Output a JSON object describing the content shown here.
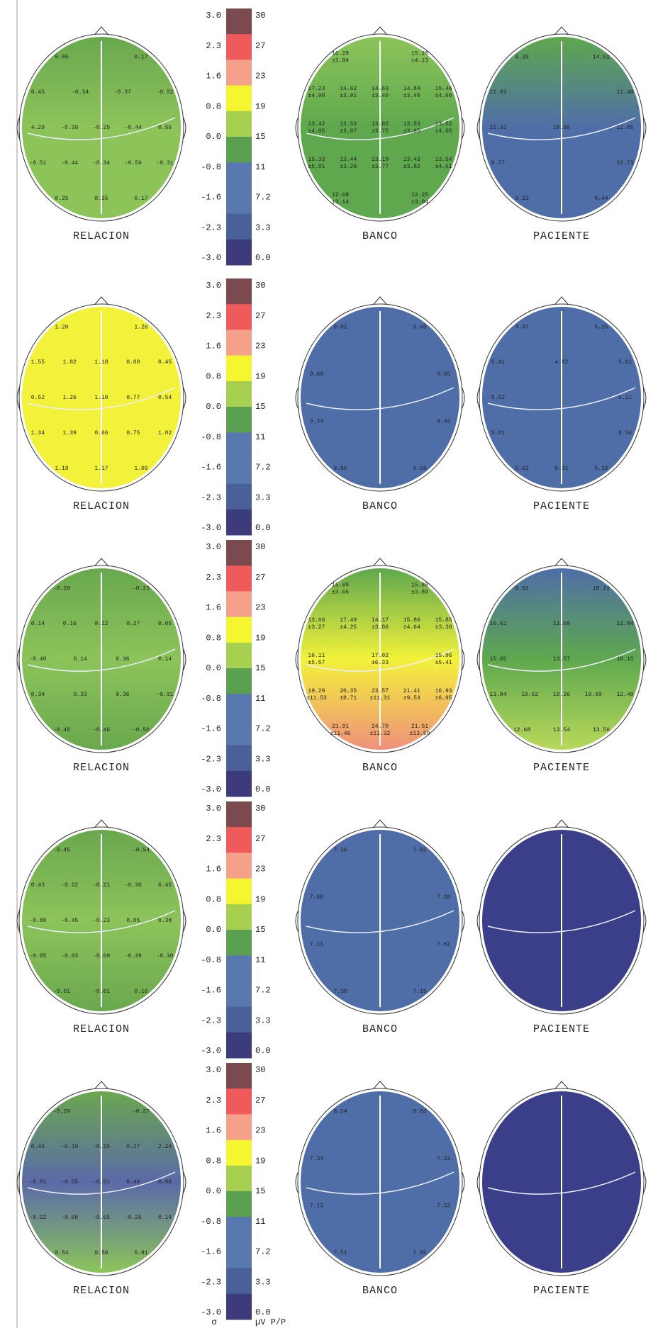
{
  "scale": {
    "sigma_ticks": [
      "3.0",
      "2.3",
      "1.6",
      "0.8",
      "0.0",
      "-0.8",
      "-1.6",
      "-2.3",
      "-3.0"
    ],
    "uv_ticks": [
      "30",
      "27",
      "23",
      "19",
      "15",
      "11",
      "7.2",
      "3.3",
      "0.0"
    ],
    "sigma_label": "σ",
    "uv_label": "µV P/P"
  },
  "rows": [
    {
      "maps": [
        {
          "label": "RELACION",
          "colors": [
            "#6aa84f",
            "#8cc45a",
            "#8cc45a"
          ],
          "lines": [
            [
              "0.05",
              "0.17"
            ],
            [
              "0.45",
              "-0.34",
              "-0.37",
              "-0.52"
            ],
            [
              "4.29",
              "-0.39",
              "-0.25",
              "-0.44",
              "0.56"
            ],
            [
              "-0.51",
              "-0.44",
              "-0.34",
              "-0.56",
              "-0.31"
            ],
            [
              "0.25",
              "0.25",
              "0.17"
            ]
          ]
        },
        {
          "label": "BANCO",
          "colors": [
            "#8cc45a",
            "#5fa84e",
            "#5fa84e"
          ],
          "lines": [
            [
              [
                "16.29",
                "±3.84"
              ],
              [
                "15.20",
                "±4.13"
              ]
            ],
            [
              [
                "17.23",
                "±4.90"
              ],
              [
                "14.62",
                "±3.91"
              ],
              [
                "14.63",
                "±3.40"
              ],
              [
                "14.84",
                "±3.40"
              ],
              [
                "15.46",
                "±4.60"
              ]
            ],
            [
              [
                "13.42",
                "±4.05"
              ],
              [
                "13.53",
                "±3.87"
              ],
              [
                "13.02",
                "±3.75"
              ],
              [
                "13.53",
                "±3.65"
              ],
              [
                "13.52",
                "±4.05"
              ]
            ],
            [
              [
                "15.33",
                "±5.01"
              ],
              [
                "13.44",
                "±3.29"
              ],
              [
                "13.19",
                "±3.77"
              ],
              [
                "13.43",
                "±3.82"
              ],
              [
                "13.54",
                "±4.61"
              ]
            ],
            [
              [
                "12.68",
                "±3.14"
              ],
              [
                "12.25",
                "±3.04"
              ]
            ]
          ]
        },
        {
          "label": "PACIENTE",
          "colors": [
            "#5fa84e",
            "#4f6ea8",
            "#4f6ea8"
          ],
          "lines": [
            [
              "9.29",
              "14.51"
            ],
            [
              "11.03",
              "11.40"
            ],
            [
              "21.31",
              "10.88",
              "11.05"
            ],
            [
              "9.77",
              "10.73"
            ],
            [
              "9.22",
              "9.44"
            ]
          ]
        }
      ]
    },
    {
      "maps": [
        {
          "label": "RELACION",
          "colors": [
            "#f2f23a",
            "#f2f23a",
            "#f2f23a"
          ],
          "lines": [
            [
              "1.20",
              "1.26"
            ],
            [
              "1.55",
              "1.02",
              "1.18",
              "0.88",
              "0.45"
            ],
            [
              "0.52",
              "1.26",
              "1.10",
              "0.77",
              "0.54"
            ],
            [
              "1.34",
              "1.39",
              "0.66",
              "0.75",
              "1.02"
            ],
            [
              "1.19",
              "1.17",
              "1.09"
            ]
          ]
        },
        {
          "label": "BANCO",
          "colors": [
            "#4f6ea8",
            "#4f6ea8",
            "#4f6ea8"
          ],
          "lines": [
            [
              "9.82",
              "9.65"
            ],
            [
              "9.68",
              "9.65"
            ],
            [
              "9.34",
              "9.42"
            ],
            [
              "9.66",
              "9.66"
            ]
          ]
        },
        {
          "label": "PACIENTE",
          "colors": [
            "#4f6ea8",
            "#4f6ea8",
            "#4f6ea8"
          ],
          "lines": [
            [
              "4.47",
              "5.25"
            ],
            [
              "5.41",
              "4.82",
              "5.61"
            ],
            [
              "5.02",
              "5.21"
            ],
            [
              "5.81",
              "6.34"
            ],
            [
              "5.62",
              "5.31",
              "5.38"
            ]
          ]
        }
      ]
    },
    {
      "maps": [
        {
          "label": "RELACION",
          "colors": [
            "#6aa84f",
            "#8cc45a",
            "#6aa84f"
          ],
          "lines": [
            [
              "-0.20",
              "-0.23"
            ],
            [
              "0.14",
              "0.16",
              "0.22",
              "0.27",
              "0.05"
            ],
            [
              "-0.40",
              "0.14",
              "0.36",
              "0.14"
            ],
            [
              "0.34",
              "0.33",
              "0.36",
              "-0.01"
            ],
            [
              "-0.45",
              "-0.46",
              "-0.50"
            ]
          ]
        },
        {
          "label": "BANCO",
          "colors": [
            "#5fa84e",
            "#f2f23a",
            "#f0907a"
          ],
          "lines": [
            [
              [
                "15.09",
                "±3.66"
              ],
              [
                "15.88",
                "±3.89"
              ]
            ],
            [
              [
                "13.66",
                "±3.27"
              ],
              [
                "17.49",
                "±4.25"
              ],
              [
                "14.17",
                "±3.86"
              ],
              [
                "15.86",
                "±4.64"
              ],
              [
                "15.85",
                "±3.30"
              ]
            ],
            [
              [
                "16.11",
                "±5.57"
              ],
              [
                "17.02",
                "±6.33"
              ],
              [
                "15.96",
                "±5.41"
              ]
            ],
            [
              [
                "19.29",
                "±11.53"
              ],
              [
                "20.35",
                "±8.71"
              ],
              [
                "23.57",
                "±11.31"
              ],
              [
                "21.41",
                "±9.53"
              ],
              [
                "16.93",
                "±6.95"
              ]
            ],
            [
              [
                "21.91",
                "±11.46"
              ],
              [
                "24.70",
                "±11.32"
              ],
              [
                "21.51",
                "±13.59"
              ]
            ]
          ]
        },
        {
          "label": "PACIENTE",
          "colors": [
            "#4f6ea8",
            "#5fa84e",
            "#b8d85a"
          ],
          "lines": [
            [
              "9.82",
              "10.22"
            ],
            [
              "10.61",
              "11.60",
              "11.04"
            ],
            [
              "15.65",
              "13.57",
              "10.15"
            ],
            [
              "13.84",
              "19.62",
              "19.26",
              "19.60",
              "12.40"
            ],
            [
              "12.68",
              "13.54",
              "13.56"
            ]
          ]
        }
      ]
    },
    {
      "maps": [
        {
          "label": "RELACION",
          "colors": [
            "#6aa84f",
            "#8cc45a",
            "#6aa84f"
          ],
          "lines": [
            [
              "-0.45",
              "-0.54"
            ],
            [
              "0.43",
              "-0.22",
              "-0.21",
              "-0.30",
              "0.45"
            ],
            [
              "-0.80",
              "-0.45",
              "-0.23",
              "0.05",
              "0.38"
            ],
            [
              "-0.05",
              "-0.63",
              "-0.69",
              "-0.39",
              "-0.30"
            ],
            [
              "-0.01",
              "-0.01",
              "0.10"
            ]
          ]
        },
        {
          "label": "BANCO",
          "colors": [
            "#4f6ea8",
            "#4f6ea8",
            "#4f6ea8"
          ],
          "lines": [
            [
              "7.36",
              "7.82"
            ],
            [
              "7.60",
              "7.38"
            ],
            [
              "7.11",
              "7.62"
            ],
            [
              "7.30",
              "7.19"
            ]
          ]
        },
        {
          "label": "PACIENTE",
          "colors": [
            "#3b3f8a",
            "#3b3f8a",
            "#3b3f8a"
          ]
        }
      ]
    },
    {
      "maps": [
        {
          "label": "RELACION",
          "colors": [
            "#6aa84f",
            "#5a6aa8",
            "#8cc45a"
          ],
          "lines": [
            [
              "-0.29",
              "-0.27"
            ],
            [
              "0.46",
              "-0.19",
              "-0.15",
              "0.27",
              "2.24"
            ],
            [
              "-0.81",
              "-0.55",
              "-0.51",
              "0.46",
              "0.98"
            ],
            [
              "-0.22",
              "-0.60",
              "-0.65",
              "-0.26",
              "0.14"
            ],
            [
              "0.54",
              "0.56",
              "0.91"
            ]
          ]
        },
        {
          "label": "BANCO",
          "colors": [
            "#4f6ea8",
            "#4f6ea8",
            "#4f6ea8"
          ],
          "lines": [
            [
              "8.24",
              "8.03"
            ],
            [
              "7.34",
              "7.22"
            ],
            [
              "7.13",
              "7.53"
            ],
            [
              "7.51",
              "7.05"
            ]
          ]
        },
        {
          "label": "PACIENTE",
          "colors": [
            "#3b3f8a",
            "#3b3f8a",
            "#3b3f8a"
          ]
        }
      ]
    }
  ]
}
